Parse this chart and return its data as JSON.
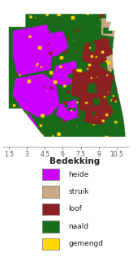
{
  "legend_title": "Bedekking",
  "legend_entries": [
    {
      "label": "heide",
      "color": "#CC00FF"
    },
    {
      "label": "struik",
      "color": "#C8A882"
    },
    {
      "label": "loof",
      "color": "#8B2020"
    },
    {
      "label": "naald",
      "color": "#1A6B1A"
    },
    {
      "label": "gemengd",
      "color": "#FFD700"
    }
  ],
  "x_ticks": [
    1.5,
    3,
    4.5,
    6,
    7.5,
    9,
    10.5
  ],
  "x_tick_labels": [
    "1.5",
    "3",
    "4.5",
    "6",
    "7.5",
    "9",
    "10.5"
  ],
  "bg_color": "#FFFFFF",
  "fig_width": 1.69,
  "fig_height": 3.17,
  "dpi": 100,
  "map_xlim": [
    1.0,
    11.5
  ],
  "map_ylim": [
    0.0,
    1.0
  ],
  "heide_rgb": [
    0.8,
    0.0,
    1.0
  ],
  "struik_rgb": [
    0.78,
    0.66,
    0.51
  ],
  "loof_rgb": [
    0.55,
    0.13,
    0.13
  ],
  "naald_rgb": [
    0.1,
    0.42,
    0.1
  ],
  "gemengd_rgb": [
    1.0,
    0.84,
    0.0
  ],
  "white_rgb": [
    1.0,
    1.0,
    1.0
  ]
}
